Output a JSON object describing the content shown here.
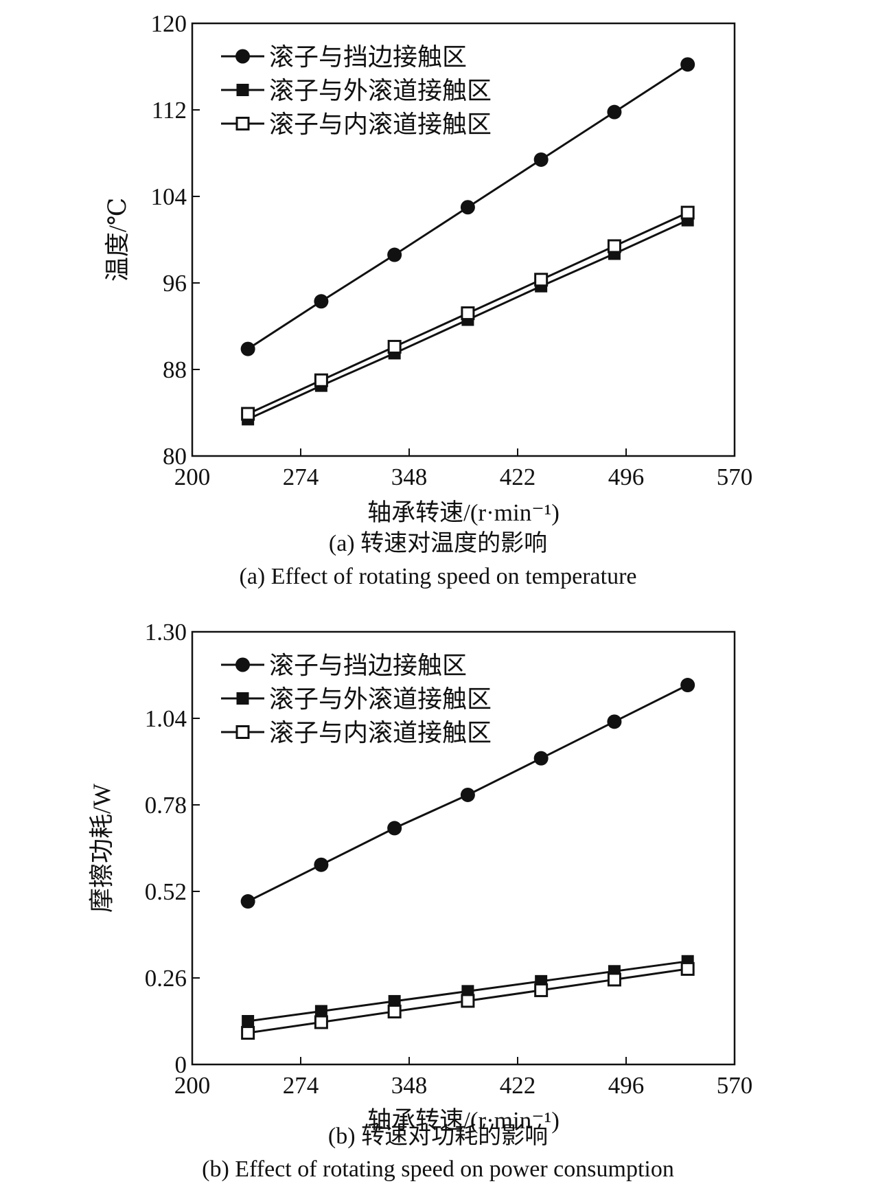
{
  "chart_data": [
    {
      "type": "line",
      "xlabel": "轴承转速/(r·min⁻¹)",
      "ylabel": "温度/℃",
      "xlim": [
        200,
        570
      ],
      "ylim": [
        80,
        120
      ],
      "xticks": [
        200,
        274,
        348,
        422,
        496,
        570
      ],
      "yticks": [
        80,
        88,
        96,
        104,
        112,
        120
      ],
      "ytick_labels": [
        "80",
        "88",
        "96",
        "104",
        "112",
        "120"
      ],
      "legend_position": "top-left",
      "grid": false,
      "x": [
        238,
        288,
        338,
        388,
        438,
        488,
        538
      ],
      "series": [
        {
          "name": "滚子与挡边接触区",
          "marker": "filled-circle",
          "values": [
            89.9,
            94.3,
            98.6,
            103.0,
            107.4,
            111.8,
            116.2
          ]
        },
        {
          "name": "滚子与外滚道接触区",
          "marker": "filled-square",
          "values": [
            83.4,
            86.5,
            89.5,
            92.6,
            95.7,
            98.7,
            101.8
          ]
        },
        {
          "name": "滚子与内滚道接触区",
          "marker": "open-square",
          "values": [
            83.9,
            87.0,
            90.1,
            93.2,
            96.3,
            99.4,
            102.5
          ]
        }
      ],
      "caption_cn": "(a) 转速对温度的影响",
      "caption_en": "(a) Effect of rotating speed on temperature"
    },
    {
      "type": "line",
      "xlabel": "轴承转速/(r·min⁻¹)",
      "ylabel": "摩擦功耗/W",
      "xlim": [
        200,
        570
      ],
      "ylim": [
        0,
        1.3
      ],
      "xticks": [
        200,
        274,
        348,
        422,
        496,
        570
      ],
      "yticks": [
        0,
        0.26,
        0.52,
        0.78,
        1.04,
        1.3
      ],
      "ytick_labels": [
        "0",
        "0.26",
        "0.52",
        "0.78",
        "1.04",
        "1.30"
      ],
      "legend_position": "top-left",
      "grid": false,
      "x": [
        238,
        288,
        338,
        388,
        438,
        488,
        538
      ],
      "series": [
        {
          "name": "滚子与挡边接触区",
          "marker": "filled-circle",
          "values": [
            0.49,
            0.6,
            0.71,
            0.81,
            0.92,
            1.03,
            1.14
          ]
        },
        {
          "name": "滚子与外滚道接触区",
          "marker": "filled-square",
          "values": [
            0.13,
            0.16,
            0.19,
            0.22,
            0.25,
            0.28,
            0.31
          ]
        },
        {
          "name": "滚子与内滚道接触区",
          "marker": "open-square",
          "values": [
            0.095,
            0.127,
            0.159,
            0.191,
            0.223,
            0.255,
            0.287
          ]
        }
      ],
      "caption_cn": "(b) 转速对功耗的影响",
      "caption_en": "(b) Effect of rotating speed on power consumption"
    }
  ]
}
